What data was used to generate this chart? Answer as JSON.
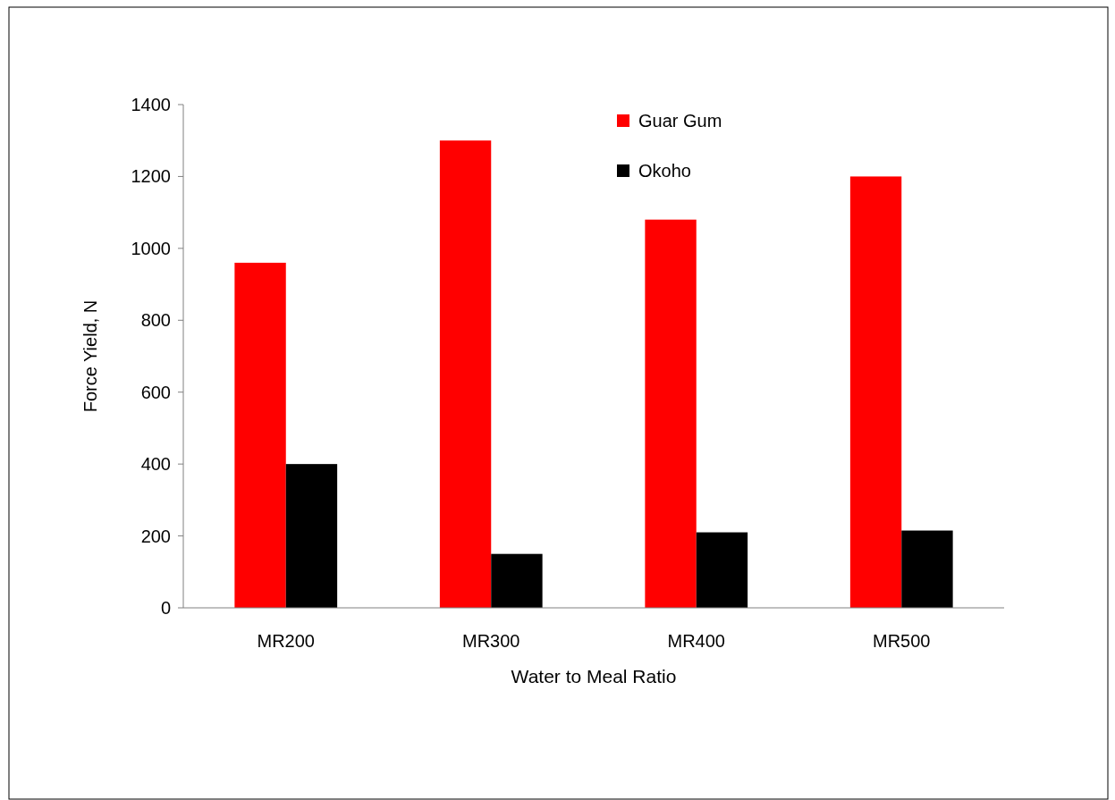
{
  "chart_data": {
    "type": "bar",
    "xlabel": "Water to Meal Ratio",
    "ylabel": "Force Yield, N",
    "categories": [
      "MR200",
      "MR300",
      "MR400",
      "MR500"
    ],
    "series": [
      {
        "name": "Guar Gum",
        "color": "#ff0000",
        "values": [
          960,
          1300,
          1080,
          1200
        ]
      },
      {
        "name": "Okoho",
        "color": "#000000",
        "values": [
          400,
          150,
          210,
          215
        ]
      }
    ],
    "ylim": [
      0,
      1400
    ],
    "yticks": [
      0,
      200,
      400,
      600,
      800,
      1000,
      1200,
      1400
    ],
    "grid": false,
    "legend": "top right"
  }
}
